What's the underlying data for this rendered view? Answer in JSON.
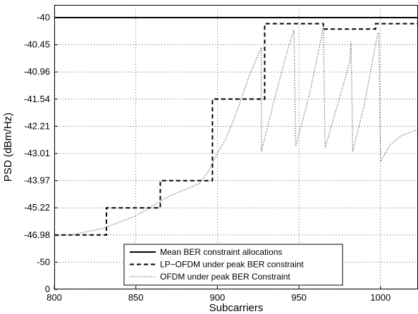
{
  "chart_data": {
    "type": "line",
    "xlabel": "Subcarriers",
    "ylabel": "PSD (dBm/Hz)",
    "xlim": [
      800,
      1023
    ],
    "x_ticks": [
      800,
      850,
      900,
      950,
      1000
    ],
    "y_ticks": [
      "-40",
      "-40.45",
      "-40.96",
      "-41.54",
      "-42.21",
      "-43.01",
      "-43.97",
      "-45.22",
      "-46.98",
      "-50",
      "0"
    ],
    "grid": true,
    "legend_position": "bottom-center",
    "series": [
      {
        "name": "Mean BER constraint allocations",
        "style": "solid",
        "color": "#000000",
        "points": [
          [
            800,
            -40
          ],
          [
            1023,
            -40
          ]
        ]
      },
      {
        "name": "LP−OFDM under peak BER constraint",
        "style": "dashed",
        "color": "#000000",
        "points": [
          [
            800,
            -46.98
          ],
          [
            832,
            -46.98
          ],
          [
            832,
            -45.22
          ],
          [
            865,
            -45.22
          ],
          [
            865,
            -43.97
          ],
          [
            897,
            -43.97
          ],
          [
            897,
            -41.54
          ],
          [
            929,
            -41.54
          ],
          [
            929,
            -40.1
          ],
          [
            965,
            -40.1
          ],
          [
            965,
            -40.19
          ],
          [
            997,
            -40.19
          ],
          [
            997,
            -40.1
          ],
          [
            1023,
            -40.1
          ]
        ]
      },
      {
        "name": "OFDM under peak BER Constraint",
        "style": "dotted",
        "color": "#555555",
        "points": [
          [
            800,
            -47.1
          ],
          [
            810,
            -46.98
          ],
          [
            830,
            -46.55
          ],
          [
            850,
            -45.74
          ],
          [
            870,
            -44.7
          ],
          [
            880,
            -44.38
          ],
          [
            889,
            -44.1
          ],
          [
            895,
            -43.6
          ],
          [
            900,
            -43.0
          ],
          [
            905,
            -42.6
          ],
          [
            910,
            -42.05
          ],
          [
            915,
            -41.5
          ],
          [
            920,
            -41.0
          ],
          [
            925,
            -40.64
          ],
          [
            927,
            -40.5
          ],
          [
            927,
            -42.95
          ],
          [
            936,
            -41.4
          ],
          [
            944,
            -40.45
          ],
          [
            947,
            -40.2
          ],
          [
            948,
            -42.8
          ],
          [
            956,
            -41.5
          ],
          [
            964,
            -40.3
          ],
          [
            965,
            -40.1
          ],
          [
            966,
            -42.85
          ],
          [
            975,
            -41.5
          ],
          [
            981,
            -40.8
          ],
          [
            982,
            -40.4
          ],
          [
            983,
            -42.95
          ],
          [
            990,
            -41.7
          ],
          [
            998,
            -40.3
          ],
          [
            999,
            -40.25
          ],
          [
            1000,
            -43.3
          ],
          [
            1006,
            -42.75
          ],
          [
            1013,
            -42.48
          ],
          [
            1023,
            -42.3
          ]
        ]
      }
    ]
  }
}
